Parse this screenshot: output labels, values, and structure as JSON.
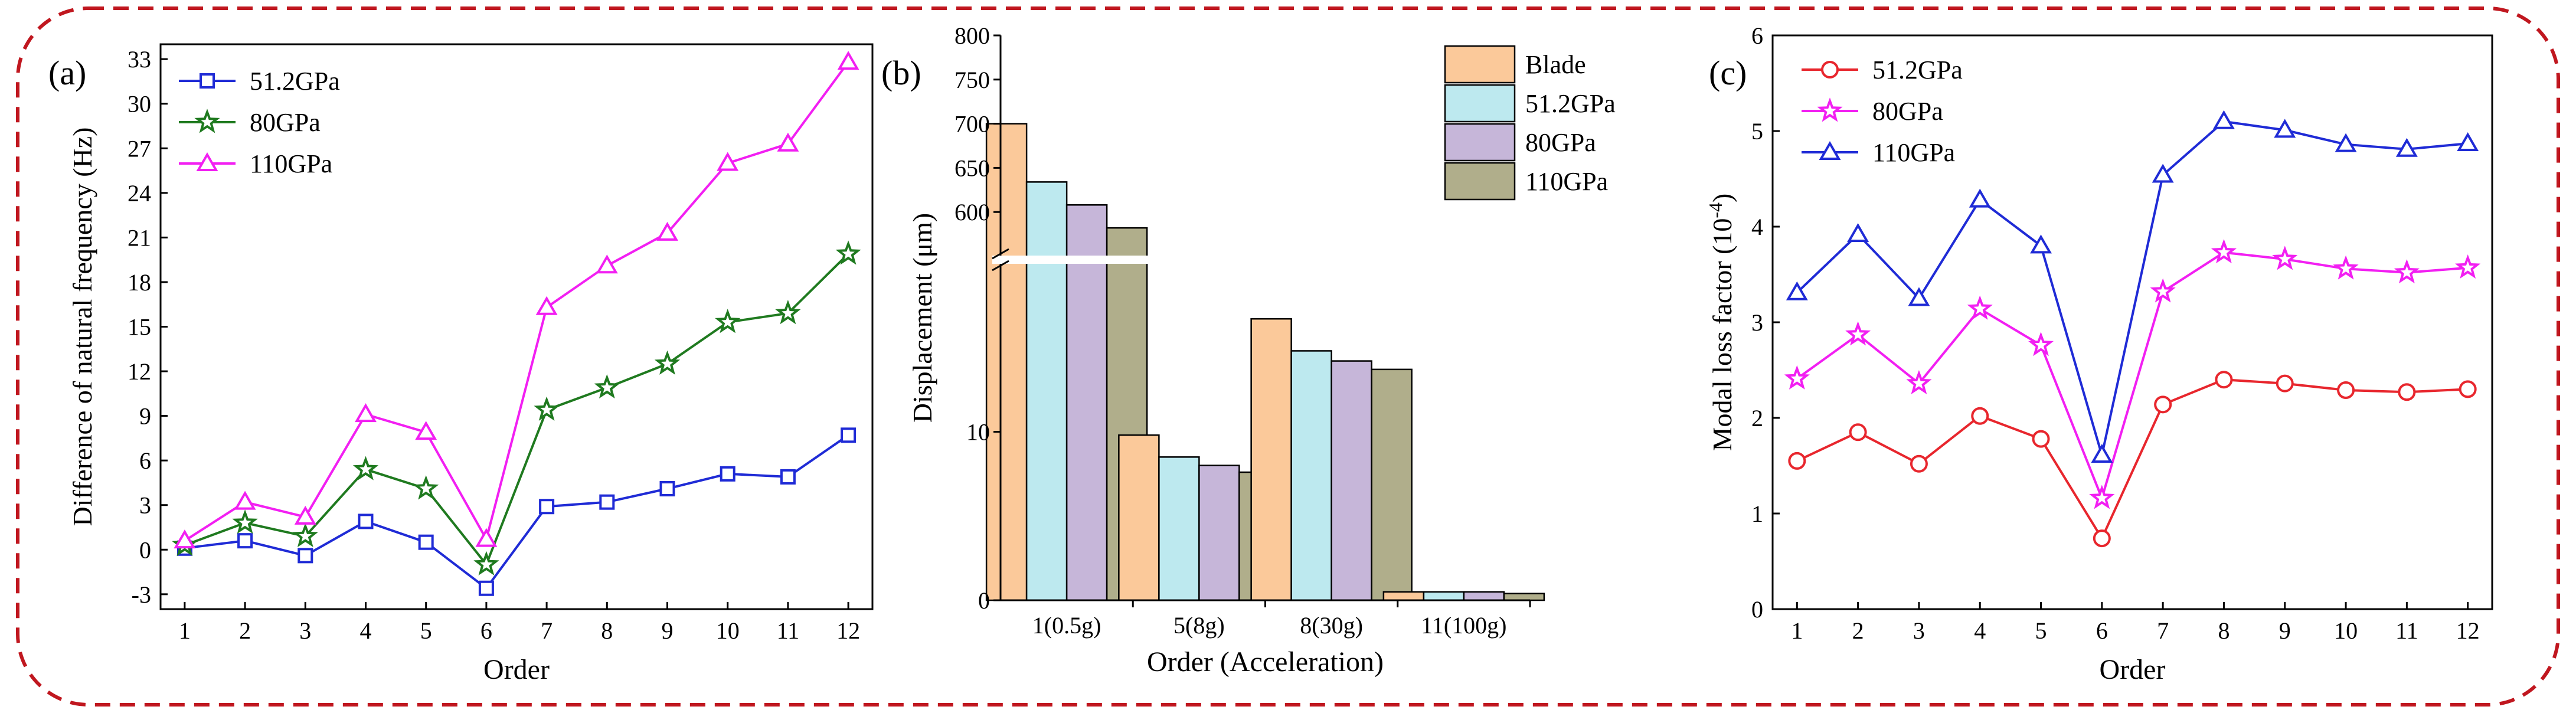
{
  "colors": {
    "border": "#c0171f",
    "blue": "#1f2bd6",
    "green": "#1f7a1f",
    "magenta": "#f21ff2",
    "red": "#e8262d",
    "blade": "#fbc99a",
    "c512": "#bde9ef",
    "c80": "#c6b6d9",
    "c110": "#b0ae8b"
  },
  "chart_data": [
    {
      "panel": "(a)",
      "type": "line",
      "xlabel": "Order",
      "ylabel": "Difference of natural frequency (Hz)",
      "x": [
        1,
        2,
        3,
        4,
        5,
        6,
        7,
        8,
        9,
        10,
        11,
        12
      ],
      "ylim": [
        -4,
        34
      ],
      "yticks": [
        -3,
        0,
        3,
        6,
        9,
        12,
        15,
        18,
        21,
        24,
        27,
        30,
        33
      ],
      "legend_position": "top-left",
      "series": [
        {
          "name": "51.2GPa",
          "marker": "square",
          "color": "#1f2bd6",
          "values": [
            0.1,
            0.6,
            -0.4,
            1.9,
            0.5,
            -2.6,
            2.9,
            3.2,
            4.1,
            5.1,
            4.9,
            7.7
          ]
        },
        {
          "name": "80GPa",
          "marker": "star",
          "color": "#1f7a1f",
          "values": [
            0.3,
            1.8,
            0.9,
            5.4,
            4.1,
            -1.0,
            9.4,
            10.9,
            12.5,
            15.3,
            15.9,
            19.9
          ]
        },
        {
          "name": "110GPa",
          "marker": "triangle",
          "color": "#f21ff2",
          "values": [
            0.6,
            3.2,
            2.2,
            9.1,
            7.9,
            0.7,
            16.3,
            19.1,
            21.3,
            26.0,
            27.3,
            32.8
          ]
        }
      ]
    },
    {
      "panel": "(b)",
      "type": "bar",
      "xlabel": "Order (Acceleration)",
      "ylabel": "Displacement (μm)",
      "categories": [
        "1(0.5g)",
        "5(8g)",
        "8(30g)",
        "11(100g)"
      ],
      "axis_break": true,
      "lower_ylim": [
        0,
        20
      ],
      "lower_yticks": [
        0,
        10
      ],
      "upper_ylim": [
        550,
        800
      ],
      "upper_yticks": [
        600,
        650,
        700,
        750,
        800
      ],
      "legend_position": "top-right",
      "series": [
        {
          "name": "Blade",
          "color": "#fbc99a",
          "values": [
            700,
            9.8,
            16.7,
            0.5
          ]
        },
        {
          "name": "51.2GPa",
          "color": "#bde9ef",
          "values": [
            634,
            8.5,
            14.8,
            0.5
          ]
        },
        {
          "name": "80GPa",
          "color": "#c6b6d9",
          "values": [
            608,
            8.0,
            14.2,
            0.5
          ]
        },
        {
          "name": "110GPa",
          "color": "#b0ae8b",
          "values": [
            582,
            7.6,
            13.7,
            0.4
          ]
        }
      ]
    },
    {
      "panel": "(c)",
      "type": "line",
      "xlabel": "Order",
      "ylabel": "Modal loss factor (10",
      "ylabel_sup": "-4",
      "ylabel_end": ")",
      "x": [
        1,
        2,
        3,
        4,
        5,
        6,
        7,
        8,
        9,
        10,
        11,
        12
      ],
      "ylim": [
        0,
        6
      ],
      "yticks": [
        0,
        1,
        2,
        3,
        4,
        5,
        6
      ],
      "legend_position": "top-left",
      "series": [
        {
          "name": "51.2GPa",
          "marker": "circle",
          "color": "#e8262d",
          "values": [
            1.55,
            1.85,
            1.52,
            2.02,
            1.78,
            0.74,
            2.14,
            2.4,
            2.36,
            2.29,
            2.27,
            2.3
          ]
        },
        {
          "name": "80GPa",
          "marker": "star",
          "color": "#f21ff2",
          "values": [
            2.41,
            2.87,
            2.36,
            3.14,
            2.76,
            1.16,
            3.32,
            3.73,
            3.66,
            3.56,
            3.52,
            3.57
          ]
        },
        {
          "name": "110GPa",
          "marker": "triangle",
          "color": "#1f2bd6",
          "values": [
            3.31,
            3.92,
            3.25,
            4.28,
            3.8,
            1.61,
            4.54,
            5.1,
            5.01,
            4.86,
            4.81,
            4.87
          ]
        }
      ]
    }
  ]
}
